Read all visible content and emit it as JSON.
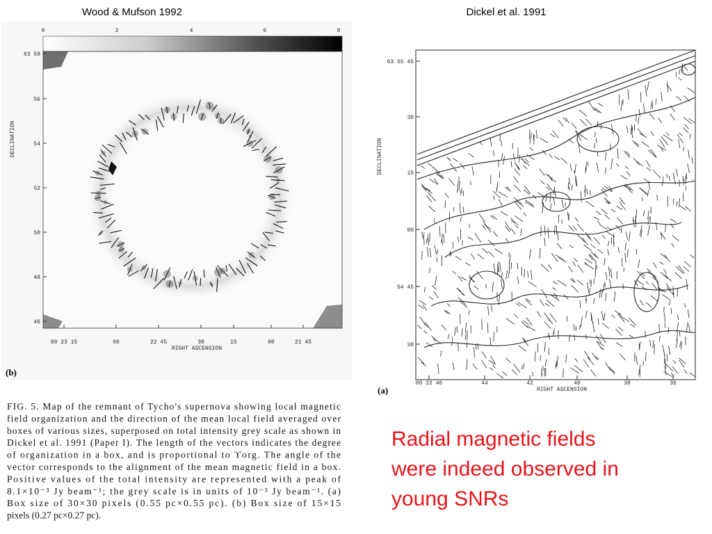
{
  "header": {
    "left": "Wood & Mufson 1992",
    "right": "Dickel et al. 1991"
  },
  "left_figure": {
    "greyscale_ticks": [
      "0",
      "2",
      "4",
      "6",
      "8"
    ],
    "y_ticks": [
      "63 58",
      "56",
      "54",
      "52",
      "50",
      "48",
      "46"
    ],
    "x_ticks": [
      "00 23 15",
      "00",
      "22 45",
      "30",
      "15",
      "00",
      "21 45"
    ],
    "x_label": "RIGHT ASCENSION",
    "y_label": "DECLINATION",
    "panel": "(b)"
  },
  "right_figure": {
    "y_ticks": [
      "63 55 45",
      "30",
      "15",
      "00",
      "54 45",
      "30"
    ],
    "x_ticks": [
      "00 22 46",
      "44",
      "42",
      "40",
      "38",
      "36"
    ],
    "x_label": "RIGHT ASCENSION",
    "y_label": "DECLINATION",
    "panel": "(a)"
  },
  "caption": {
    "lines": [
      "FIG. 5. Map of the remnant of Tycho's supernova showing local magnetic",
      "field organization and the direction of the mean local field averaged over",
      "boxes of various sizes, superposed on total intensity grey scale as shown in",
      "Dickel et al. 1991 (Paper I). The length of the vectors indicates the degree",
      "of organization in a box, and is proportional to ϒorg. The angle of the",
      "vector corresponds to the alignment of the mean magnetic field in a box.",
      "Positive values of the total intensity are represented with a peak of",
      "8.1×10⁻³ Jy beam⁻¹; the grey scale is in units of 10⁻³ Jy beam⁻¹. (a)",
      "Box size of 30×30 pixels (0.55 pc×0.55 pc). (b) Box size of 15×15",
      "pixels (0.27 pc×0.27 pc)."
    ]
  },
  "statement": {
    "lines": [
      "Radial magnetic fields",
      "were indeed observed in",
      "young SNRs"
    ]
  }
}
